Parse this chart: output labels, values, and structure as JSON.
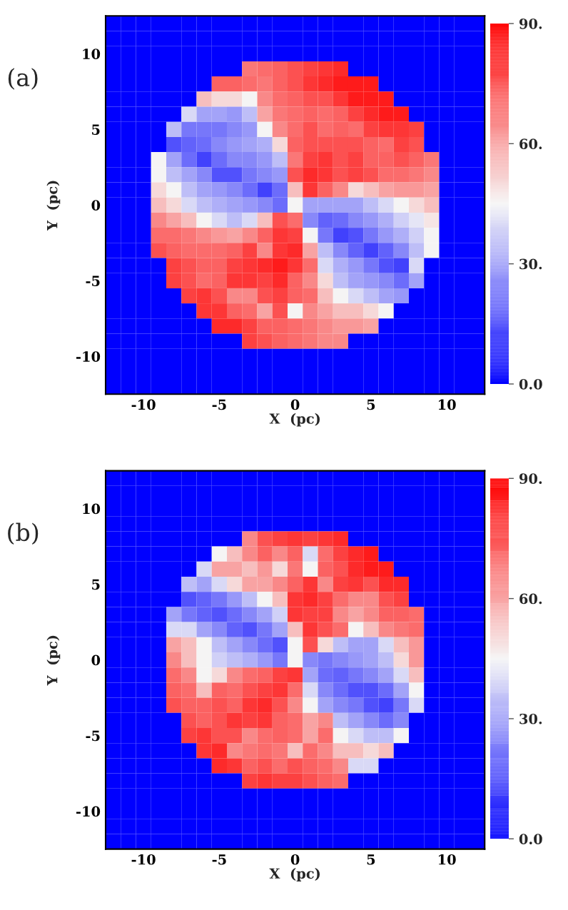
{
  "chart_data": [
    {
      "type": "heatmap",
      "title": "(a)",
      "xlabel": "X  (pc)",
      "ylabel": "Y  (pc)",
      "categories": [
        null,
        null,
        "-10",
        null,
        null,
        null,
        null,
        "-5",
        null,
        null,
        null,
        null,
        "0",
        null,
        null,
        null,
        null,
        "5",
        null,
        null,
        null,
        null,
        "10",
        null,
        null
      ],
      "y_categories": [
        null,
        null,
        "10",
        null,
        null,
        null,
        null,
        "5",
        null,
        null,
        null,
        null,
        "0",
        null,
        null,
        null,
        null,
        "-5",
        null,
        null,
        null,
        null,
        "-10",
        null,
        null
      ],
      "clim": [
        0,
        90
      ],
      "cticks": [
        {
          "value": 0,
          "label": "0.0"
        },
        {
          "value": 30,
          "label": "30."
        },
        {
          "value": 60,
          "label": "60."
        },
        {
          "value": 90,
          "label": "90."
        }
      ],
      "cells": [
        [
          0,
          0,
          0,
          0,
          0,
          0,
          0,
          0,
          0,
          0,
          0,
          0,
          0,
          0,
          0,
          0,
          0,
          0,
          0,
          0,
          0,
          0,
          0,
          0,
          0
        ],
        [
          0,
          0,
          0,
          0,
          0,
          0,
          0,
          0,
          0,
          0,
          0,
          0,
          0,
          0,
          0,
          0,
          0,
          0,
          0,
          0,
          0,
          0,
          0,
          0,
          0
        ],
        [
          0,
          0,
          0,
          0,
          0,
          0,
          0,
          0,
          0,
          0,
          0,
          0,
          0,
          0,
          0,
          0,
          0,
          0,
          0,
          0,
          0,
          0,
          0,
          0,
          0
        ],
        [
          0,
          0,
          0,
          0,
          0,
          0,
          0,
          0,
          0,
          68,
          70,
          72,
          75,
          78,
          80,
          82,
          0,
          0,
          0,
          0,
          0,
          0,
          0,
          0,
          0
        ],
        [
          0,
          0,
          0,
          0,
          0,
          0,
          0,
          72,
          72,
          70,
          68,
          72,
          75,
          80,
          82,
          85,
          85,
          85,
          0,
          0,
          0,
          0,
          0,
          0,
          0
        ],
        [
          0,
          0,
          0,
          0,
          0,
          0,
          55,
          50,
          50,
          45,
          65,
          70,
          72,
          75,
          75,
          80,
          85,
          85,
          85,
          0,
          0,
          0,
          0,
          0,
          0
        ],
        [
          0,
          0,
          0,
          0,
          0,
          40,
          30,
          30,
          28,
          35,
          60,
          68,
          70,
          72,
          70,
          72,
          78,
          82,
          85,
          85,
          0,
          0,
          0,
          0,
          0
        ],
        [
          0,
          0,
          0,
          0,
          35,
          22,
          22,
          22,
          25,
          28,
          45,
          65,
          70,
          75,
          70,
          72,
          70,
          78,
          80,
          80,
          78,
          0,
          0,
          0,
          0
        ],
        [
          0,
          0,
          0,
          0,
          15,
          18,
          20,
          25,
          28,
          30,
          32,
          50,
          72,
          75,
          75,
          75,
          75,
          72,
          70,
          78,
          75,
          0,
          0,
          0,
          0
        ],
        [
          0,
          0,
          0,
          45,
          30,
          20,
          12,
          20,
          25,
          25,
          28,
          35,
          68,
          78,
          80,
          75,
          78,
          72,
          72,
          75,
          72,
          68,
          0,
          0,
          0
        ],
        [
          0,
          0,
          0,
          45,
          35,
          30,
          25,
          15,
          15,
          22,
          25,
          28,
          75,
          82,
          80,
          75,
          78,
          75,
          70,
          70,
          68,
          65,
          0,
          0,
          0
        ],
        [
          0,
          0,
          0,
          50,
          45,
          35,
          30,
          28,
          25,
          20,
          12,
          20,
          55,
          80,
          72,
          65,
          50,
          55,
          60,
          62,
          62,
          60,
          0,
          0,
          0
        ],
        [
          0,
          0,
          0,
          55,
          50,
          40,
          35,
          32,
          30,
          28,
          25,
          20,
          45,
          30,
          30,
          30,
          30,
          35,
          40,
          45,
          50,
          55,
          0,
          0,
          0
        ],
        [
          0,
          0,
          0,
          65,
          60,
          55,
          45,
          40,
          35,
          40,
          55,
          75,
          70,
          25,
          18,
          20,
          25,
          28,
          32,
          38,
          42,
          48,
          0,
          0,
          0
        ],
        [
          0,
          0,
          0,
          70,
          70,
          68,
          65,
          62,
          60,
          65,
          72,
          80,
          78,
          45,
          22,
          12,
          15,
          22,
          28,
          32,
          38,
          45,
          0,
          0,
          0
        ],
        [
          0,
          0,
          0,
          75,
          72,
          70,
          70,
          70,
          72,
          78,
          65,
          80,
          82,
          60,
          35,
          25,
          18,
          12,
          18,
          25,
          35,
          45,
          0,
          0,
          0
        ],
        [
          0,
          0,
          0,
          0,
          78,
          75,
          72,
          72,
          78,
          80,
          82,
          85,
          80,
          70,
          40,
          32,
          28,
          22,
          15,
          12,
          40,
          0,
          0,
          0,
          0
        ],
        [
          0,
          0,
          0,
          0,
          78,
          75,
          70,
          72,
          80,
          80,
          78,
          82,
          72,
          65,
          50,
          35,
          30,
          28,
          25,
          20,
          30,
          0,
          0,
          0,
          0
        ],
        [
          0,
          0,
          0,
          0,
          0,
          78,
          80,
          75,
          65,
          65,
          75,
          78,
          72,
          70,
          55,
          45,
          40,
          35,
          30,
          28,
          0,
          0,
          0,
          0,
          0
        ],
        [
          0,
          0,
          0,
          0,
          0,
          0,
          80,
          80,
          72,
          70,
          60,
          75,
          45,
          65,
          60,
          55,
          55,
          50,
          45,
          0,
          0,
          0,
          0,
          0,
          0
        ],
        [
          0,
          0,
          0,
          0,
          0,
          0,
          0,
          82,
          82,
          78,
          72,
          72,
          70,
          68,
          65,
          62,
          62,
          60,
          0,
          0,
          0,
          0,
          0,
          0,
          0
        ],
        [
          0,
          0,
          0,
          0,
          0,
          0,
          0,
          0,
          0,
          78,
          75,
          72,
          70,
          68,
          65,
          65,
          0,
          0,
          0,
          0,
          0,
          0,
          0,
          0,
          0
        ],
        [
          0,
          0,
          0,
          0,
          0,
          0,
          0,
          0,
          0,
          0,
          0,
          0,
          0,
          0,
          0,
          0,
          0,
          0,
          0,
          0,
          0,
          0,
          0,
          0,
          0
        ],
        [
          0,
          0,
          0,
          0,
          0,
          0,
          0,
          0,
          0,
          0,
          0,
          0,
          0,
          0,
          0,
          0,
          0,
          0,
          0,
          0,
          0,
          0,
          0,
          0,
          0
        ],
        [
          0,
          0,
          0,
          0,
          0,
          0,
          0,
          0,
          0,
          0,
          0,
          0,
          0,
          0,
          0,
          0,
          0,
          0,
          0,
          0,
          0,
          0,
          0,
          0,
          0
        ]
      ]
    },
    {
      "type": "heatmap",
      "title": "(b)",
      "xlabel": "X  (pc)",
      "ylabel": "Y  (pc)",
      "categories": [
        null,
        null,
        "-10",
        null,
        null,
        null,
        null,
        "-5",
        null,
        null,
        null,
        null,
        "0",
        null,
        null,
        null,
        null,
        "5",
        null,
        null,
        null,
        null,
        "10",
        null,
        null
      ],
      "y_categories": [
        null,
        null,
        "10",
        null,
        null,
        null,
        null,
        "5",
        null,
        null,
        null,
        null,
        "0",
        null,
        null,
        null,
        null,
        "-5",
        null,
        null,
        null,
        null,
        "-10",
        null,
        null
      ],
      "clim": [
        0,
        90
      ],
      "cticks": [
        {
          "value": 0,
          "label": "0.0"
        },
        {
          "value": 30,
          "label": "30."
        },
        {
          "value": 60,
          "label": "60."
        },
        {
          "value": 90,
          "label": "90."
        }
      ],
      "cells": [
        [
          0,
          0,
          0,
          0,
          0,
          0,
          0,
          0,
          0,
          0,
          0,
          0,
          0,
          0,
          0,
          0,
          0,
          0,
          0,
          0,
          0,
          0,
          0,
          0,
          0
        ],
        [
          0,
          0,
          0,
          0,
          0,
          0,
          0,
          0,
          0,
          0,
          0,
          0,
          0,
          0,
          0,
          0,
          0,
          0,
          0,
          0,
          0,
          0,
          0,
          0,
          0
        ],
        [
          0,
          0,
          0,
          0,
          0,
          0,
          0,
          0,
          0,
          0,
          0,
          0,
          0,
          0,
          0,
          0,
          0,
          0,
          0,
          0,
          0,
          0,
          0,
          0,
          0
        ],
        [
          0,
          0,
          0,
          0,
          0,
          0,
          0,
          0,
          0,
          0,
          0,
          0,
          0,
          0,
          0,
          0,
          0,
          0,
          0,
          0,
          0,
          0,
          0,
          0,
          0
        ],
        [
          0,
          0,
          0,
          0,
          0,
          0,
          0,
          0,
          0,
          65,
          75,
          78,
          80,
          78,
          80,
          82,
          0,
          0,
          0,
          0,
          0,
          0,
          0,
          0,
          0
        ],
        [
          0,
          0,
          0,
          0,
          0,
          0,
          0,
          45,
          55,
          65,
          72,
          65,
          72,
          40,
          70,
          78,
          82,
          85,
          0,
          0,
          0,
          0,
          0,
          0,
          0
        ],
        [
          0,
          0,
          0,
          0,
          0,
          0,
          40,
          60,
          60,
          55,
          62,
          50,
          68,
          45,
          72,
          75,
          82,
          85,
          85,
          0,
          0,
          0,
          0,
          0,
          0
        ],
        [
          0,
          0,
          0,
          0,
          0,
          35,
          30,
          40,
          50,
          60,
          60,
          65,
          72,
          80,
          65,
          78,
          80,
          75,
          82,
          82,
          0,
          0,
          0,
          0,
          0
        ],
        [
          0,
          0,
          0,
          0,
          0,
          15,
          18,
          22,
          28,
          35,
          45,
          55,
          80,
          82,
          78,
          70,
          65,
          65,
          75,
          78,
          0,
          0,
          0,
          0,
          0
        ],
        [
          0,
          0,
          0,
          0,
          30,
          22,
          18,
          15,
          20,
          25,
          30,
          38,
          80,
          78,
          78,
          65,
          60,
          65,
          72,
          72,
          70,
          0,
          0,
          0,
          0
        ],
        [
          0,
          0,
          0,
          0,
          40,
          40,
          30,
          25,
          18,
          15,
          22,
          30,
          55,
          80,
          75,
          70,
          45,
          55,
          65,
          68,
          70,
          0,
          0,
          0,
          0
        ],
        [
          0,
          0,
          0,
          0,
          60,
          55,
          45,
          35,
          30,
          25,
          20,
          15,
          45,
          75,
          50,
          35,
          30,
          30,
          40,
          55,
          62,
          0,
          0,
          0,
          0
        ],
        [
          0,
          0,
          0,
          0,
          65,
          55,
          45,
          38,
          35,
          32,
          28,
          22,
          45,
          25,
          22,
          25,
          28,
          30,
          35,
          50,
          62,
          0,
          0,
          0,
          0
        ],
        [
          0,
          0,
          0,
          0,
          70,
          65,
          45,
          50,
          65,
          70,
          72,
          78,
          80,
          30,
          20,
          18,
          22,
          25,
          30,
          40,
          55,
          0,
          0,
          0,
          0
        ],
        [
          0,
          0,
          0,
          0,
          72,
          70,
          55,
          72,
          70,
          75,
          78,
          80,
          70,
          40,
          25,
          20,
          15,
          15,
          20,
          30,
          45,
          0,
          0,
          0,
          0
        ],
        [
          0,
          0,
          0,
          0,
          75,
          72,
          72,
          75,
          72,
          80,
          82,
          75,
          65,
          45,
          30,
          25,
          22,
          15,
          12,
          22,
          40,
          0,
          0,
          0,
          0
        ],
        [
          0,
          0,
          0,
          0,
          0,
          75,
          72,
          75,
          80,
          78,
          80,
          72,
          70,
          60,
          65,
          35,
          30,
          25,
          20,
          25,
          0,
          0,
          0,
          0,
          0
        ],
        [
          0,
          0,
          0,
          0,
          0,
          78,
          80,
          75,
          75,
          65,
          70,
          72,
          70,
          60,
          70,
          45,
          40,
          35,
          35,
          45,
          0,
          0,
          0,
          0,
          0
        ],
        [
          0,
          0,
          0,
          0,
          0,
          0,
          80,
          82,
          65,
          68,
          70,
          68,
          55,
          70,
          65,
          55,
          55,
          50,
          55,
          0,
          0,
          0,
          0,
          0,
          0
        ],
        [
          0,
          0,
          0,
          0,
          0,
          0,
          0,
          82,
          80,
          72,
          75,
          70,
          75,
          72,
          70,
          65,
          40,
          40,
          0,
          0,
          0,
          0,
          0,
          0,
          0
        ],
        [
          0,
          0,
          0,
          0,
          0,
          0,
          0,
          0,
          0,
          78,
          80,
          78,
          78,
          75,
          72,
          70,
          0,
          0,
          0,
          0,
          0,
          0,
          0,
          0,
          0
        ],
        [
          0,
          0,
          0,
          0,
          0,
          0,
          0,
          0,
          0,
          0,
          0,
          0,
          0,
          0,
          0,
          0,
          0,
          0,
          0,
          0,
          0,
          0,
          0,
          0,
          0
        ],
        [
          0,
          0,
          0,
          0,
          0,
          0,
          0,
          0,
          0,
          0,
          0,
          0,
          0,
          0,
          0,
          0,
          0,
          0,
          0,
          0,
          0,
          0,
          0,
          0,
          0
        ],
        [
          0,
          0,
          0,
          0,
          0,
          0,
          0,
          0,
          0,
          0,
          0,
          0,
          0,
          0,
          0,
          0,
          0,
          0,
          0,
          0,
          0,
          0,
          0,
          0,
          0
        ],
        [
          0,
          0,
          0,
          0,
          0,
          0,
          0,
          0,
          0,
          0,
          0,
          0,
          0,
          0,
          0,
          0,
          0,
          0,
          0,
          0,
          0,
          0,
          0,
          0,
          0
        ]
      ]
    }
  ]
}
